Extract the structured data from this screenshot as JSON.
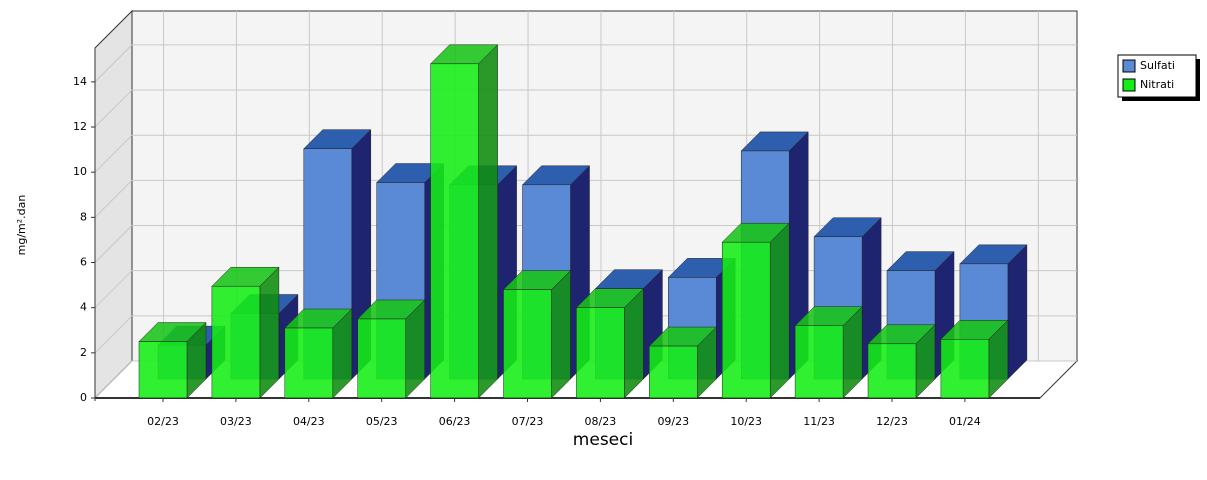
{
  "chart_data": {
    "type": "bar3d",
    "y_label": "mg/m².dan",
    "x_label": "meseci",
    "categories": [
      "02/23",
      "03/23",
      "04/23",
      "05/23",
      "06/23",
      "07/23",
      "08/23",
      "09/23",
      "10/23",
      "11/23",
      "12/23",
      "01/24"
    ],
    "series": [
      {
        "name": "Sulfati",
        "color": "#5a8ad6",
        "values": [
          1.5,
          2.9,
          10.2,
          8.7,
          8.6,
          8.6,
          4.0,
          4.5,
          10.1,
          6.3,
          4.8,
          5.1
        ]
      },
      {
        "name": "Nitrati",
        "color": "#14ee14",
        "values": [
          2.5,
          4.95,
          3.1,
          3.5,
          14.8,
          4.8,
          4.0,
          2.3,
          6.9,
          3.2,
          2.4,
          2.6
        ]
      }
    ],
    "ylim": [
      0,
      15.5
    ],
    "yticks": [
      0,
      2,
      4,
      6,
      8,
      10,
      12,
      14
    ],
    "grid": true,
    "legend": "top-right"
  }
}
